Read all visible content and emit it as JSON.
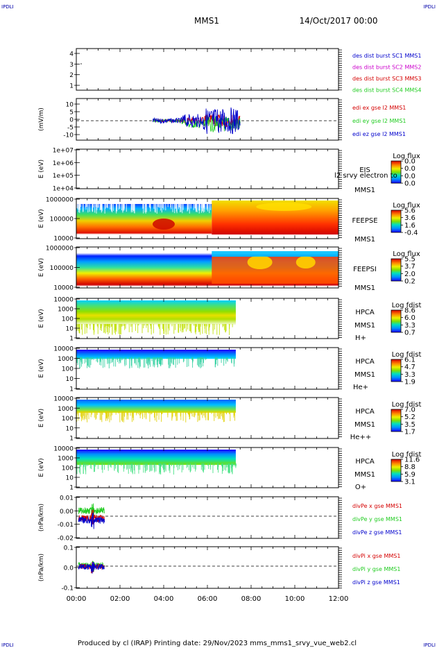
{
  "header": {
    "corner_tl": "IPDLI",
    "corner_tr": "IPDLI",
    "corner_bl": "IPDLI",
    "corner_br": "IPDLI",
    "mission": "MMS1",
    "datetime": "14/Oct/2017 00:00"
  },
  "footer": {
    "text": "Produced by cl (IRAP)    Printing date: 29/Nov/2023    mms_mms1_srvy_vue_web2.cl"
  },
  "colors": {
    "red": "#d40000",
    "green": "#22cc22",
    "blue": "#0000cc",
    "magenta": "#cc00cc"
  },
  "chart_data": [
    {
      "type": "line",
      "panel": "burst",
      "ylim": [
        0.5,
        4.5
      ],
      "yticks": [
        "4",
        "3",
        "2",
        "1"
      ],
      "series": [
        {
          "name": "des dist burst SC1 MMS1",
          "color": "#0000cc"
        },
        {
          "name": "des dist burst SC2 MMS2",
          "color": "#cc00cc"
        },
        {
          "name": "des dist burst SC3 MMS3",
          "color": "#d40000"
        },
        {
          "name": "des dist burst SC4 MMS4",
          "color": "#22cc22"
        }
      ]
    },
    {
      "type": "line",
      "panel": "edi",
      "ylabel": "(mV/m)",
      "ylim": [
        -12,
        13
      ],
      "yticks": [
        "10",
        "5",
        "0",
        "-5",
        "-10"
      ],
      "xlim_hours": [
        0,
        12
      ],
      "series": [
        {
          "name": "edi ex gse l2 MMS1",
          "color": "#d40000"
        },
        {
          "name": "edi ey gse l2 MMS1",
          "color": "#22cc22"
        },
        {
          "name": "edi ez gse l2 MMS1",
          "color": "#0000cc"
        }
      ],
      "data_range_hours": [
        3.5,
        7.5
      ]
    },
    {
      "type": "heatmap",
      "panel": "eis",
      "ylabel": "E (eV)",
      "yticks": [
        "1e+07",
        "1e+06",
        "1e+05",
        "1e+04"
      ],
      "instrument": "EIS",
      "spacecraft": "MMS1",
      "cbar_title": "Log flux",
      "cbar_ticks": [
        "0.0",
        "0.0",
        "0.0",
        "0.0"
      ],
      "overlay_text": "l2 srvy electron to"
    },
    {
      "type": "heatmap",
      "panel": "feepse",
      "ylabel": "E (eV)",
      "yticks": [
        "1000000",
        "100000",
        "10000"
      ],
      "instrument": "FEEPSE",
      "spacecraft": "MMS1",
      "cbar_title": "Log flux",
      "cbar_ticks": [
        "5.6",
        "3.6",
        "1.6",
        "-0.4"
      ]
    },
    {
      "type": "heatmap",
      "panel": "feepsi",
      "ylabel": "E (eV)",
      "yticks": [
        "1000000",
        "100000",
        "10000"
      ],
      "instrument": "FEEPSI",
      "spacecraft": "MMS1",
      "cbar_title": "Log flux",
      "cbar_ticks": [
        "5.5",
        "3.7",
        "2.0",
        "0.2"
      ]
    },
    {
      "type": "heatmap",
      "panel": "hpca_h",
      "ylabel": "E (eV)",
      "yticks": [
        "10000",
        "1000",
        "100",
        "10",
        "1"
      ],
      "instrument": "HPCA",
      "spacecraft": "MMS1",
      "species": "H+",
      "cbar_title": "Log fdist",
      "cbar_ticks": [
        "8.6",
        "6.0",
        "3.3",
        "0.7"
      ]
    },
    {
      "type": "heatmap",
      "panel": "hpca_he",
      "ylabel": "E (eV)",
      "yticks": [
        "10000",
        "1000",
        "100",
        "10",
        "1"
      ],
      "instrument": "HPCA",
      "spacecraft": "MMS1",
      "species": "He+",
      "cbar_title": "Log fdist",
      "cbar_ticks": [
        "6.1",
        "4.7",
        "3.3",
        "1.9"
      ]
    },
    {
      "type": "heatmap",
      "panel": "hpca_hepp",
      "ylabel": "E (eV)",
      "yticks": [
        "10000",
        "1000",
        "100",
        "10",
        "1"
      ],
      "instrument": "HPCA",
      "spacecraft": "MMS1",
      "species": "He++",
      "cbar_title": "Log fdist",
      "cbar_ticks": [
        "7.0",
        "5.2",
        "3.5",
        "1.7"
      ]
    },
    {
      "type": "heatmap",
      "panel": "hpca_o",
      "ylabel": "E (eV)",
      "yticks": [
        "10000",
        "1000",
        "100",
        "10",
        "1"
      ],
      "instrument": "HPCA",
      "spacecraft": "MMS1",
      "species": "O+",
      "cbar_title": "Log fdist",
      "cbar_ticks": [
        "11.6",
        "8.8",
        "5.9",
        "3.1"
      ]
    },
    {
      "type": "line",
      "panel": "divpe",
      "ylabel": "(nPa/km)",
      "yticks": [
        "0.01",
        "0.00",
        "-0.01",
        "-0.02"
      ],
      "series": [
        {
          "name": "divPe x gse MMS1",
          "color": "#d40000"
        },
        {
          "name": "divPe y gse MMS1",
          "color": "#22cc22"
        },
        {
          "name": "divPe z gse MMS1",
          "color": "#0000cc"
        }
      ],
      "data_range_hours": [
        0.1,
        1.3
      ]
    },
    {
      "type": "line",
      "panel": "divpi",
      "ylabel": "(nPa/km)",
      "yticks": [
        "0.1",
        "0.0",
        "-0.1"
      ],
      "series": [
        {
          "name": "divPi x gse MMS1",
          "color": "#d40000"
        },
        {
          "name": "divPi y gse MMS1",
          "color": "#22cc22"
        },
        {
          "name": "divPi z gse MMS1",
          "color": "#0000cc"
        }
      ],
      "data_range_hours": [
        0.1,
        1.3
      ]
    }
  ],
  "x_axis": {
    "xlim_hours": [
      0,
      12
    ],
    "tick_labels": [
      "00:00",
      "02:00",
      "04:00",
      "06:00",
      "08:00",
      "10:00",
      "12:00"
    ]
  }
}
